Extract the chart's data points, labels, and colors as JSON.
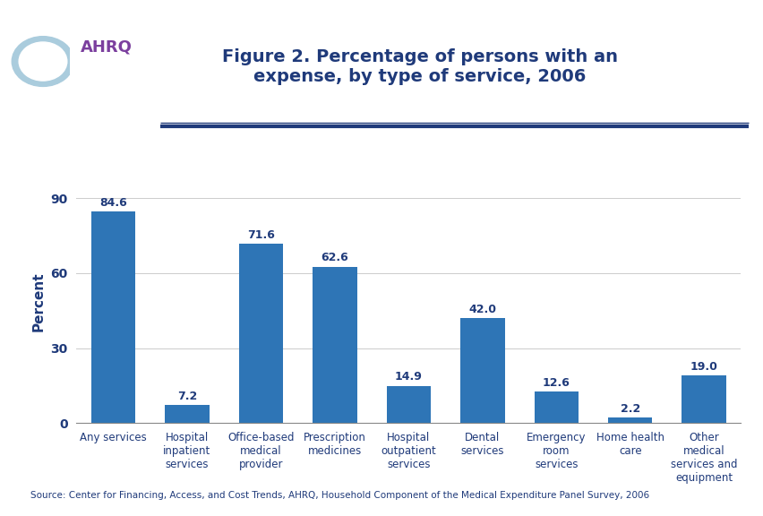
{
  "title": "Figure 2. Percentage of persons with an\nexpense, by type of service, 2006",
  "title_color": "#1F3A7A",
  "ylabel": "Percent",
  "ylabel_color": "#1F3A7A",
  "categories": [
    "Any services",
    "Hospital\ninpatient\nservices",
    "Office-based\nmedical\nprovider",
    "Prescription\nmedicines",
    "Hospital\noutpatient\nservices",
    "Dental\nservices",
    "Emergency\nroom\nservices",
    "Home health\ncare",
    "Other\nmedical\nservices and\nequipment"
  ],
  "values": [
    84.6,
    7.2,
    71.6,
    62.6,
    14.9,
    42.0,
    12.6,
    2.2,
    19.0
  ],
  "bar_color": "#2E75B6",
  "yticks": [
    0,
    30,
    60,
    90
  ],
  "ylim": [
    0,
    97
  ],
  "value_labels": [
    "84.6",
    "7.2",
    "71.6",
    "62.6",
    "14.9",
    "42.0",
    "12.6",
    "2.2",
    "19.0"
  ],
  "source_text": "Source: Center for Financing, Access, and Cost Trends, AHRQ, Household Component of the Medical Expenditure Panel Survey, 2006",
  "bg_color": "#FFFFFF",
  "header_line_color": "#1F3A7A",
  "tick_label_color": "#1F3A7A",
  "value_label_color": "#1F3A7A",
  "source_color": "#1F3A7A",
  "logo_teal": "#008B9A",
  "logo_text_color": "#7B3F9E"
}
